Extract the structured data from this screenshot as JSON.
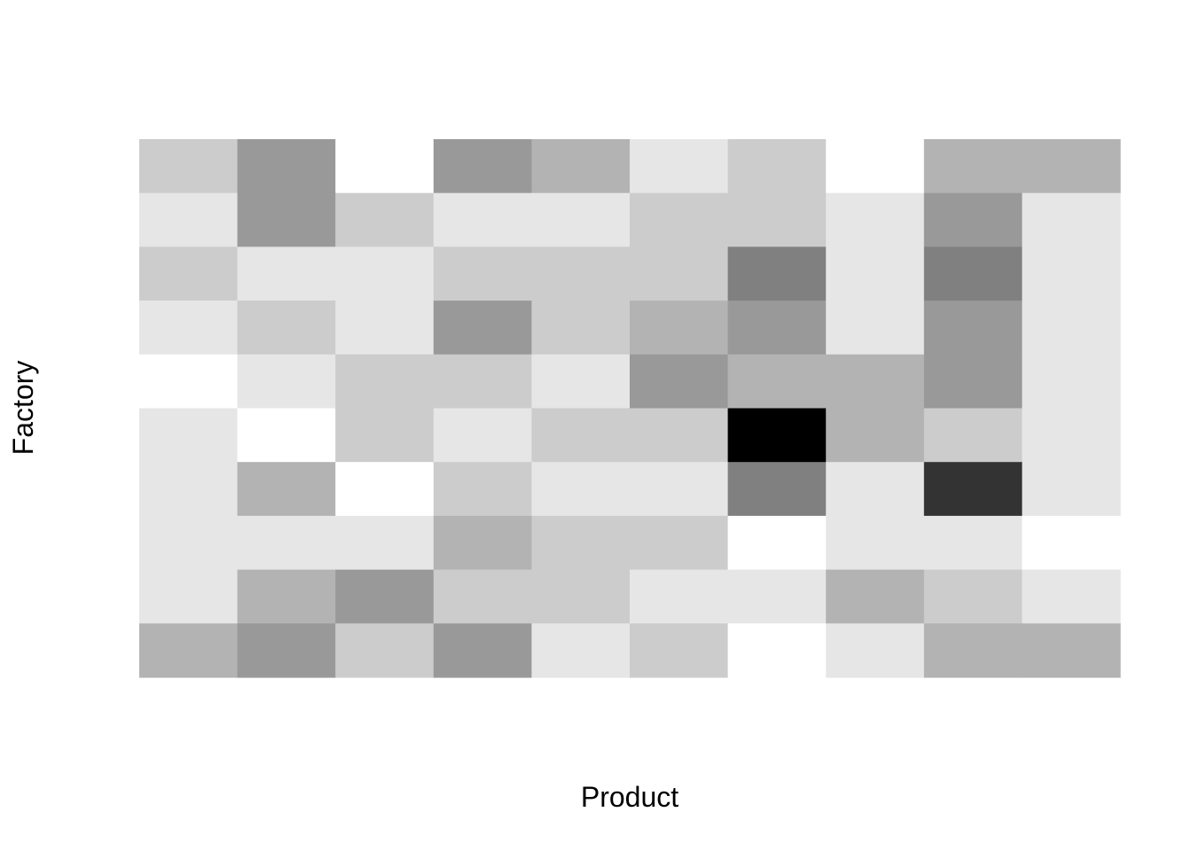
{
  "chart_data": {
    "type": "heatmap",
    "title": "",
    "xlabel": "Product",
    "ylabel": "Factory",
    "x_count": 10,
    "y_count": 10,
    "grid": false,
    "legend": "none",
    "color_scale": {
      "low": "#ffffff",
      "high": "#000000"
    },
    "value_range": [
      0,
      10
    ],
    "values": [
      [
        2,
        4,
        0,
        4,
        3,
        1,
        2,
        0,
        3,
        3
      ],
      [
        1,
        4,
        2,
        1,
        1,
        2,
        2,
        1,
        4,
        1
      ],
      [
        2,
        1,
        1,
        2,
        2,
        2,
        5,
        1,
        5,
        1
      ],
      [
        1,
        2,
        1,
        4,
        2,
        3,
        4,
        1,
        4,
        1
      ],
      [
        0,
        1,
        2,
        2,
        1,
        4,
        3,
        3,
        4,
        1
      ],
      [
        1,
        0,
        2,
        1,
        2,
        2,
        10,
        3,
        2,
        1
      ],
      [
        1,
        3,
        0,
        2,
        1,
        1,
        5,
        1,
        8,
        1
      ],
      [
        1,
        1,
        1,
        3,
        2,
        2,
        0,
        1,
        1,
        0
      ],
      [
        1,
        3,
        4,
        2,
        2,
        1,
        1,
        3,
        2,
        1
      ],
      [
        3,
        4,
        2,
        4,
        1,
        2,
        0,
        1,
        3,
        3
      ]
    ]
  }
}
